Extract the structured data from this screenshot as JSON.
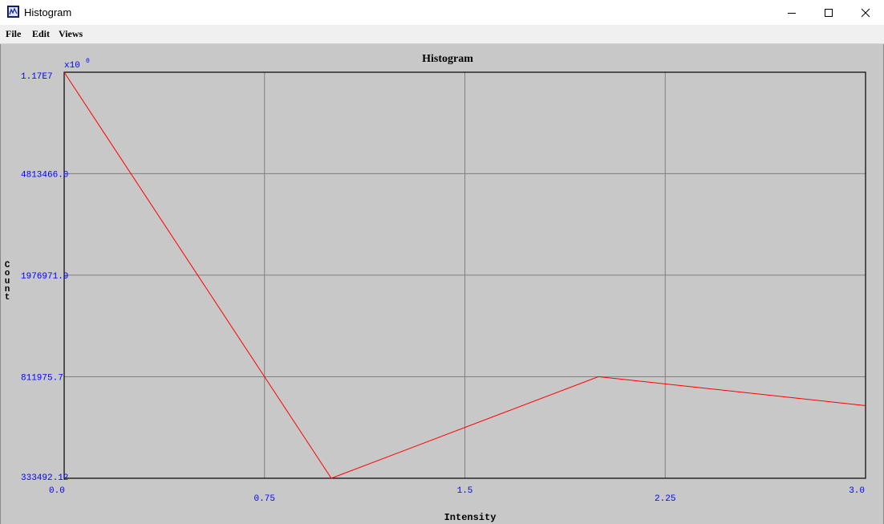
{
  "window": {
    "title": "Histogram",
    "minimize_glyph": "─",
    "maximize_glyph": "☐",
    "close_glyph": "✕"
  },
  "menu": [
    "File",
    "Edit",
    "Views"
  ],
  "chart_data": {
    "type": "line",
    "title": "Histogram",
    "xlabel": "Intensity",
    "ylabel": "Count",
    "exponent_label": "x10",
    "exponent_value": "0",
    "x_ticks": [
      "0.0",
      "0.75",
      "1.5",
      "2.25",
      "3.0"
    ],
    "y_ticks": [
      "333492.12",
      "811975.7",
      "1976971.9",
      "4813466.0",
      "1.17E7"
    ],
    "xlim": [
      0.0,
      3.0
    ],
    "y_scale": "log",
    "ylim": [
      333492.12,
      11700000
    ],
    "grid": true,
    "series": [
      {
        "color": "#ff0000",
        "x": [
          0.0,
          1.0,
          2.0,
          3.0
        ],
        "y": [
          11700000,
          333492.12,
          811975.7,
          630000
        ]
      }
    ]
  }
}
